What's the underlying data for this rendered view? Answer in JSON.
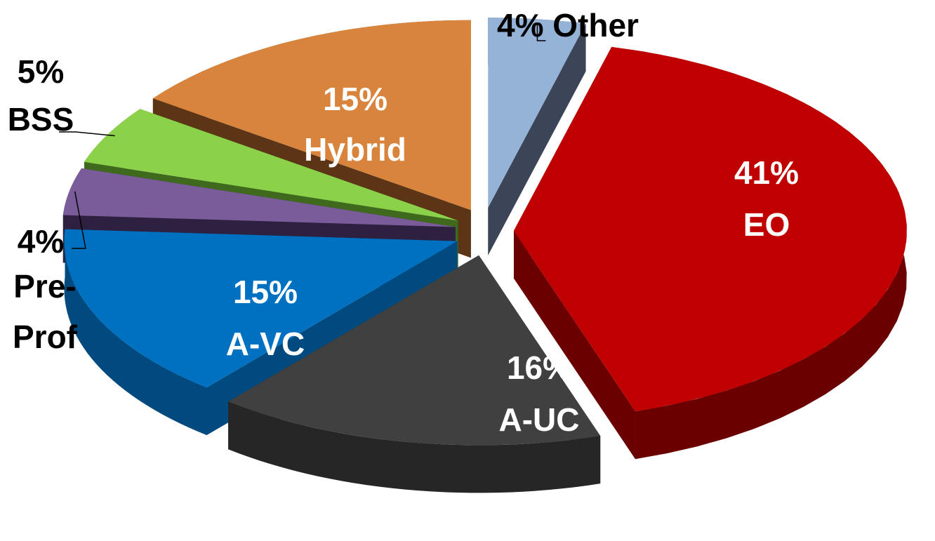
{
  "chart_data": {
    "type": "pie",
    "style": "3d-exploded",
    "slices": [
      {
        "category": "EO",
        "value": 41,
        "value_label": "41%",
        "name_label": "EO",
        "color": "#c00000",
        "side_color": "#6a0000",
        "label_placement": "inside"
      },
      {
        "category": "A-UC",
        "value": 16,
        "value_label": "16%",
        "name_label": "A-UC",
        "color": "#404040",
        "side_color": "#262626",
        "label_placement": "inside"
      },
      {
        "category": "A-VC",
        "value": 15,
        "value_label": "15%",
        "name_label": "A-VC",
        "color": "#0070c0",
        "side_color": "#004a80",
        "label_placement": "inside"
      },
      {
        "category": "Pre-Prof",
        "value": 4,
        "value_label": "4%",
        "name_label": "Pre-",
        "name_label_2": "Prof",
        "color": "#7b5c9a",
        "side_color": "#2d2040",
        "label_placement": "outside"
      },
      {
        "category": "BSS",
        "value": 5,
        "value_label": "5%",
        "name_label": "BSS",
        "color": "#8cd14a",
        "side_color": "#3f6a1e",
        "label_placement": "outside"
      },
      {
        "category": "Hybrid",
        "value": 15,
        "value_label": "15%",
        "name_label": "Hybrid",
        "color": "#d9843c",
        "side_color": "#5c3516",
        "label_placement": "inside"
      },
      {
        "category": "Other",
        "value": 4,
        "value_label": "4% Other",
        "color": "#95b3d7",
        "side_color": "#3b4557",
        "label_placement": "outside"
      }
    ],
    "title": "",
    "legend": "none"
  }
}
